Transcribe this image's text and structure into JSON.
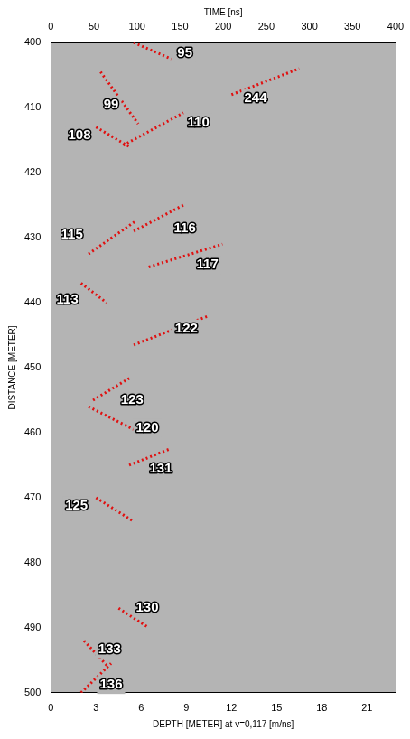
{
  "chart_data": {
    "type": "line",
    "x_title": "DEPTH [METER] at v=0,117 [m/ns]",
    "x2_title": "TIME [ns]",
    "y_title": "DISTANCE [METER]",
    "xlim": [
      0,
      22.9
    ],
    "xticks": [
      0,
      3,
      6,
      9,
      12,
      15,
      18,
      21
    ],
    "x2lim": [
      0,
      400
    ],
    "x2ticks": [
      0,
      50,
      100,
      150,
      200,
      250,
      300,
      350,
      400
    ],
    "ylim": [
      400,
      500
    ],
    "yticks": [
      400,
      410,
      420,
      430,
      440,
      450,
      460,
      470,
      480,
      490,
      500
    ],
    "grid": false,
    "color": "#e01010",
    "line_style": "dotted",
    "marker": "none",
    "series": [
      {
        "name": "95",
        "x": [
          5.5,
          8.0
        ],
        "values": [
          400.0,
          402.5
        ],
        "label_x": 8.9,
        "label_y": 401.6
      },
      {
        "name": "244",
        "x": [
          12.0,
          16.5
        ],
        "values": [
          408.0,
          404.0
        ],
        "label_x": 13.6,
        "label_y": 408.6
      },
      {
        "name": "99",
        "x": [
          3.3,
          5.8
        ],
        "values": [
          404.5,
          412.5
        ],
        "label_x": 4.0,
        "label_y": 409.6
      },
      {
        "name": "110",
        "x": [
          4.8,
          8.8
        ],
        "values": [
          415.8,
          410.8
        ],
        "label_x": 9.8,
        "label_y": 412.3
      },
      {
        "name": "108",
        "x": [
          3.0,
          5.2
        ],
        "values": [
          413.0,
          416.0
        ],
        "label_x": 1.9,
        "label_y": 414.3
      },
      {
        "name": "115",
        "x": [
          2.5,
          5.6
        ],
        "values": [
          432.5,
          427.5
        ],
        "label_x": 1.4,
        "label_y": 429.5
      },
      {
        "name": "116",
        "x": [
          5.5,
          8.8
        ],
        "values": [
          429.0,
          425.0
        ],
        "label_x": 8.9,
        "label_y": 428.6
      },
      {
        "name": "117",
        "x": [
          6.5,
          11.4
        ],
        "values": [
          434.5,
          431.0
        ],
        "label_x": 10.4,
        "label_y": 434.2
      },
      {
        "name": "113",
        "x": [
          2.0,
          3.7
        ],
        "values": [
          437.0,
          440.0
        ],
        "label_x": 1.1,
        "label_y": 439.6
      },
      {
        "name": "122",
        "x": [
          5.5,
          10.5
        ],
        "values": [
          446.5,
          442.0
        ],
        "label_x": 9.0,
        "label_y": 444.0
      },
      {
        "name": "123",
        "x": [
          2.8,
          5.3
        ],
        "values": [
          455.0,
          451.5
        ],
        "label_x": 5.4,
        "label_y": 455.0
      },
      {
        "name": "120",
        "x": [
          2.5,
          5.5
        ],
        "values": [
          456.0,
          459.5
        ],
        "label_x": 6.4,
        "label_y": 459.3
      },
      {
        "name": "131",
        "x": [
          5.2,
          7.9
        ],
        "values": [
          465.0,
          462.5
        ],
        "label_x": 7.3,
        "label_y": 465.6
      },
      {
        "name": "125",
        "x": [
          3.0,
          5.4
        ],
        "values": [
          470.0,
          473.5
        ],
        "label_x": 1.7,
        "label_y": 471.2
      },
      {
        "name": "130",
        "x": [
          4.5,
          6.5
        ],
        "values": [
          487.0,
          490.0
        ],
        "label_x": 6.4,
        "label_y": 487.0
      },
      {
        "name": "133",
        "x": [
          2.2,
          3.8
        ],
        "values": [
          492.0,
          496.0
        ],
        "label_x": 3.9,
        "label_y": 493.3
      },
      {
        "name": "136",
        "x": [
          2.0,
          4.0
        ],
        "values": [
          500.0,
          495.5
        ],
        "label_x": 4.0,
        "label_y": 498.8
      }
    ]
  }
}
